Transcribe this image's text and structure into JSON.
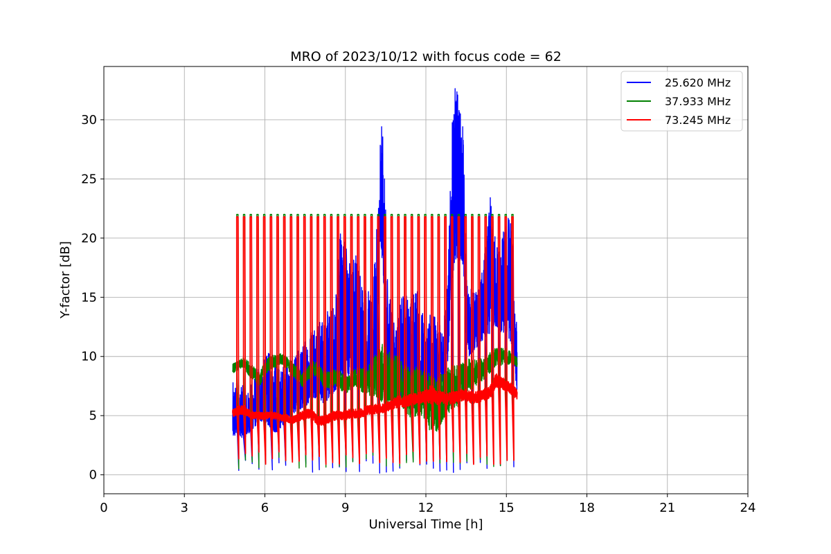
{
  "chart_data": {
    "type": "line",
    "title": "MRO of 2023/10/12 with focus code = 62",
    "xlabel": "Universal Time [h]",
    "ylabel": "Y-factor [dB]",
    "xlim": [
      0,
      24
    ],
    "ylim": [
      -1.6,
      34.5
    ],
    "xticks": [
      0,
      3,
      6,
      9,
      12,
      15,
      18,
      21,
      24
    ],
    "yticks": [
      0,
      5,
      10,
      15,
      20,
      25,
      30
    ],
    "grid": true,
    "legend_position": "top-right",
    "series": [
      {
        "name": "25.620 MHz",
        "color": "#0000ff",
        "x": [
          4.8,
          5.0,
          5.2,
          5.4,
          5.6,
          5.8,
          6.0,
          6.2,
          6.4,
          6.6,
          6.8,
          7.0,
          7.2,
          7.4,
          7.6,
          7.8,
          8.0,
          8.2,
          8.4,
          8.6,
          8.8,
          9.0,
          9.2,
          9.4,
          9.6,
          9.8,
          10.0,
          10.2,
          10.3,
          10.4,
          10.5,
          10.6,
          10.8,
          11.0,
          11.2,
          11.4,
          11.6,
          11.8,
          12.0,
          12.2,
          12.4,
          12.6,
          12.8,
          13.0,
          13.1,
          13.2,
          13.3,
          13.4,
          13.5,
          13.6,
          13.8,
          14.0,
          14.2,
          14.4,
          14.6,
          14.8,
          15.0,
          15.2,
          15.4
        ],
        "upper": [
          7.8,
          8.0,
          7.5,
          7.0,
          8.5,
          9.5,
          10.0,
          10.5,
          9.5,
          9.0,
          10.0,
          9.0,
          10.5,
          11.0,
          12.0,
          13.5,
          13.0,
          13.5,
          14.0,
          14.5,
          22.0,
          20.0,
          18.0,
          19.5,
          17.0,
          16.0,
          15.0,
          22.0,
          29.5,
          29.5,
          22.5,
          16.0,
          13.0,
          14.0,
          16.0,
          15.0,
          16.5,
          14.5,
          13.0,
          14.0,
          13.0,
          13.0,
          16.0,
          31.0,
          33.0,
          32.5,
          30.5,
          29.0,
          17.0,
          16.0,
          15.5,
          16.0,
          19.0,
          23.5,
          20.0,
          19.5,
          22.5,
          22.0,
          12.0
        ],
        "lower": [
          3.0,
          3.5,
          3.0,
          3.5,
          4.0,
          4.5,
          4.5,
          4.0,
          3.5,
          4.0,
          4.5,
          5.0,
          5.5,
          5.5,
          6.0,
          6.5,
          6.5,
          6.0,
          6.5,
          7.0,
          8.0,
          8.0,
          8.5,
          8.5,
          8.0,
          8.0,
          8.5,
          9.0,
          18.0,
          18.5,
          8.0,
          8.0,
          6.5,
          6.0,
          6.5,
          6.0,
          5.5,
          6.0,
          6.0,
          7.0,
          6.5,
          7.5,
          9.0,
          17.0,
          18.0,
          18.5,
          18.0,
          17.5,
          11.0,
          10.0,
          10.5,
          11.0,
          11.5,
          12.0,
          12.5,
          12.0,
          12.0,
          11.0,
          7.0
        ],
        "drop_min": 0.1
      },
      {
        "name": "37.933 MHz",
        "color": "#008000",
        "x": [
          4.8,
          5.0,
          5.2,
          5.4,
          5.6,
          5.8,
          6.0,
          6.2,
          6.4,
          6.6,
          6.8,
          7.0,
          7.2,
          7.4,
          7.6,
          7.8,
          8.0,
          8.2,
          8.4,
          8.6,
          8.8,
          9.0,
          9.2,
          9.4,
          9.6,
          9.8,
          10.0,
          10.2,
          10.4,
          10.6,
          10.8,
          11.0,
          11.2,
          11.4,
          11.6,
          11.8,
          12.0,
          12.2,
          12.4,
          12.6,
          12.8,
          13.0,
          13.2,
          13.4,
          13.6,
          13.8,
          14.0,
          14.2,
          14.4,
          14.6,
          14.8,
          15.0,
          15.2,
          15.4
        ],
        "center": [
          9.0,
          9.2,
          9.5,
          9.0,
          8.5,
          8.0,
          9.0,
          9.5,
          9.5,
          9.8,
          9.5,
          9.0,
          8.5,
          8.0,
          8.5,
          9.0,
          8.8,
          8.0,
          8.0,
          8.2,
          8.0,
          7.5,
          8.0,
          8.2,
          8.0,
          8.0,
          8.2,
          8.5,
          8.5,
          8.0,
          8.0,
          8.0,
          7.5,
          7.0,
          7.0,
          7.0,
          6.5,
          6.0,
          6.0,
          6.5,
          7.0,
          7.5,
          7.5,
          8.0,
          8.5,
          8.5,
          8.8,
          9.0,
          9.5,
          10.0,
          10.0,
          10.0,
          9.8,
          9.5
        ],
        "spread": [
          0.4,
          0.4,
          0.4,
          0.6,
          0.6,
          0.6,
          0.6,
          0.6,
          0.6,
          0.5,
          0.5,
          0.6,
          0.6,
          0.6,
          0.6,
          0.6,
          0.6,
          0.7,
          0.7,
          0.7,
          0.8,
          0.8,
          0.8,
          0.8,
          1.0,
          1.2,
          1.6,
          2.0,
          2.6,
          2.4,
          2.2,
          2.0,
          2.0,
          2.2,
          2.2,
          2.0,
          2.2,
          2.5,
          2.5,
          2.2,
          2.0,
          1.8,
          1.8,
          1.6,
          1.4,
          1.2,
          1.0,
          0.9,
          0.9,
          0.8,
          0.8,
          0.7,
          0.5,
          0.4
        ],
        "peak": 22.0,
        "drop_min": 0.5
      },
      {
        "name": "73.245 MHz",
        "color": "#ff0000",
        "x": [
          4.8,
          5.0,
          5.2,
          5.4,
          5.6,
          5.8,
          6.0,
          6.2,
          6.4,
          6.6,
          6.8,
          7.0,
          7.2,
          7.4,
          7.6,
          7.8,
          8.0,
          8.2,
          8.4,
          8.6,
          8.8,
          9.0,
          9.2,
          9.4,
          9.6,
          9.8,
          10.0,
          10.2,
          10.4,
          10.6,
          10.8,
          11.0,
          11.2,
          11.4,
          11.6,
          11.8,
          12.0,
          12.2,
          12.4,
          12.6,
          12.8,
          13.0,
          13.2,
          13.4,
          13.6,
          13.8,
          14.0,
          14.2,
          14.4,
          14.6,
          14.8,
          15.0,
          15.2,
          15.4
        ],
        "center": [
          5.2,
          5.4,
          5.5,
          5.2,
          5.0,
          5.0,
          5.0,
          5.0,
          5.0,
          4.8,
          4.8,
          4.6,
          4.8,
          5.0,
          5.2,
          5.0,
          4.5,
          4.6,
          4.8,
          5.0,
          5.0,
          5.0,
          5.2,
          5.2,
          5.2,
          5.5,
          5.5,
          5.6,
          5.6,
          5.8,
          6.0,
          6.2,
          6.2,
          6.3,
          6.4,
          6.5,
          6.6,
          6.8,
          6.5,
          6.6,
          6.4,
          6.5,
          6.6,
          6.8,
          6.6,
          6.5,
          6.6,
          6.8,
          7.0,
          8.0,
          7.8,
          7.5,
          7.2,
          6.8
        ],
        "spread": [
          0.3,
          0.4,
          0.4,
          0.3,
          0.3,
          0.3,
          0.3,
          0.3,
          0.3,
          0.3,
          0.3,
          0.3,
          0.3,
          0.4,
          0.4,
          0.4,
          0.4,
          0.4,
          0.4,
          0.4,
          0.4,
          0.4,
          0.4,
          0.4,
          0.4,
          0.4,
          0.4,
          0.4,
          0.4,
          0.4,
          0.5,
          0.5,
          0.5,
          0.5,
          0.5,
          0.5,
          0.6,
          0.8,
          0.6,
          0.5,
          0.5,
          0.5,
          0.5,
          0.5,
          0.5,
          0.5,
          0.5,
          0.5,
          0.5,
          0.6,
          0.5,
          0.5,
          0.5,
          0.4
        ],
        "peak": 21.8,
        "drop_min": 0.8
      }
    ],
    "calibration_spike_times": [
      4.95,
      5.2,
      5.45,
      5.7,
      5.95,
      6.2,
      6.45,
      6.7,
      6.95,
      7.2,
      7.45,
      7.7,
      7.95,
      8.2,
      8.45,
      8.7,
      8.95,
      9.2,
      9.45,
      9.7,
      9.95,
      10.2,
      10.45,
      10.7,
      10.95,
      11.2,
      11.45,
      11.7,
      11.95,
      12.2,
      12.45,
      12.7,
      12.95,
      13.2,
      13.45,
      13.7,
      13.95,
      14.2,
      14.45,
      14.7,
      14.95,
      15.2
    ]
  }
}
